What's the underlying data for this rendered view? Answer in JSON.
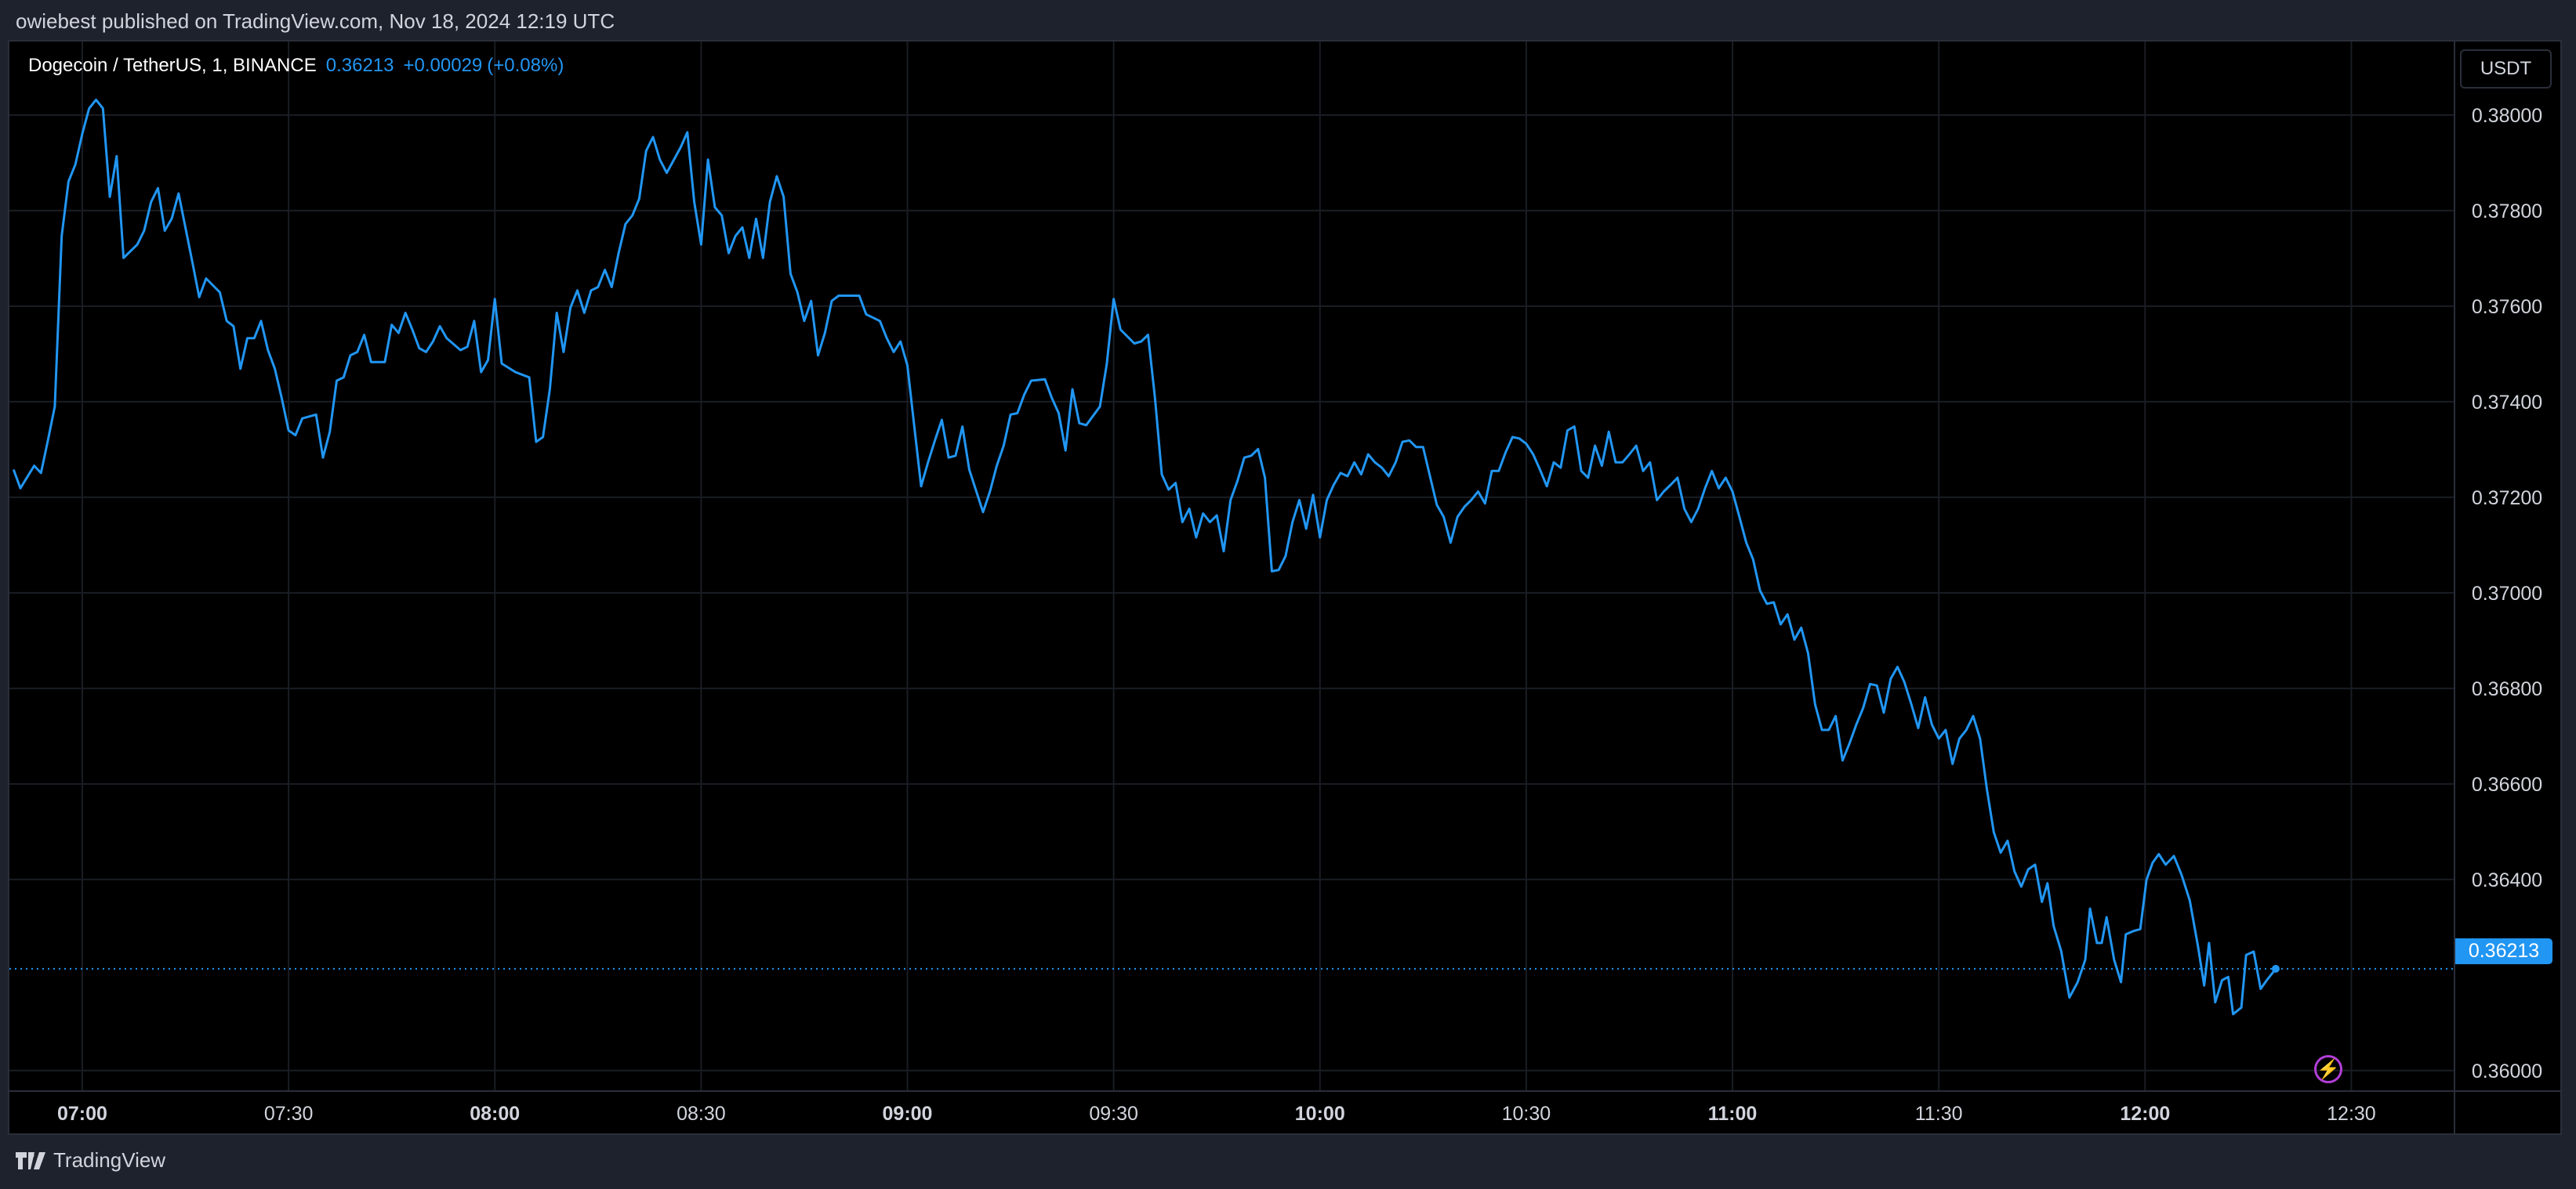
{
  "header": {
    "published": "owiebest published on TradingView.com, Nov 18, 2024 12:19 UTC"
  },
  "legend": {
    "symbol": "Dogecoin / TetherUS, 1, BINANCE",
    "price": "0.36213",
    "change": "+0.00029",
    "change_pct": "(+0.08%)"
  },
  "currency_button": "USDT",
  "last_price_label": "0.36213",
  "footer": {
    "brand": "TradingView"
  },
  "colors": {
    "line": "#2196f3",
    "grid": "#1a1d24",
    "axis_text": "#d1d4dc",
    "bolt": "#b23fd8"
  },
  "chart_data": {
    "type": "line",
    "title": "Dogecoin / TetherUS, 1, BINANCE",
    "x_unit": "minutes from 07:00 UTC",
    "xlim": [
      -10.6,
      345
    ],
    "ylim": [
      0.35957,
      0.38154
    ],
    "grid": true,
    "last_price": 0.36213,
    "x_ticks": [
      {
        "m": 0,
        "label": "07:00",
        "bold": true
      },
      {
        "m": 30,
        "label": "07:30"
      },
      {
        "m": 60,
        "label": "08:00",
        "bold": true
      },
      {
        "m": 90,
        "label": "08:30"
      },
      {
        "m": 120,
        "label": "09:00",
        "bold": true
      },
      {
        "m": 150,
        "label": "09:30"
      },
      {
        "m": 180,
        "label": "10:00",
        "bold": true
      },
      {
        "m": 210,
        "label": "10:30"
      },
      {
        "m": 240,
        "label": "11:00",
        "bold": true
      },
      {
        "m": 270,
        "label": "11:30"
      },
      {
        "m": 300,
        "label": "12:00",
        "bold": true
      },
      {
        "m": 330,
        "label": "12:30"
      }
    ],
    "y_ticks": [
      {
        "v": 0.38,
        "label": "0.38000"
      },
      {
        "v": 0.378,
        "label": "0.37800"
      },
      {
        "v": 0.376,
        "label": "0.37600"
      },
      {
        "v": 0.374,
        "label": "0.37400"
      },
      {
        "v": 0.372,
        "label": "0.37200"
      },
      {
        "v": 0.37,
        "label": "0.37000"
      },
      {
        "v": 0.368,
        "label": "0.36800"
      },
      {
        "v": 0.366,
        "label": "0.36600"
      },
      {
        "v": 0.364,
        "label": "0.36400"
      },
      {
        "v": 0.36,
        "label": "0.36000"
      }
    ],
    "points": [
      [
        -10,
        0.37258
      ],
      [
        -9,
        0.37219
      ],
      [
        -7,
        0.37266
      ],
      [
        -6,
        0.37251
      ],
      [
        -5,
        0.37319
      ],
      [
        -4,
        0.3739
      ],
      [
        -3,
        0.37747
      ],
      [
        -2,
        0.37861
      ],
      [
        -1,
        0.37897
      ],
      [
        0,
        0.37961
      ],
      [
        1,
        0.38014
      ],
      [
        2,
        0.38032
      ],
      [
        3,
        0.38014
      ],
      [
        4,
        0.37829
      ],
      [
        5,
        0.37914
      ],
      [
        6,
        0.37701
      ],
      [
        8,
        0.37729
      ],
      [
        9,
        0.37758
      ],
      [
        10,
        0.37818
      ],
      [
        11,
        0.37847
      ],
      [
        12,
        0.37758
      ],
      [
        13,
        0.37783
      ],
      [
        14,
        0.37836
      ],
      [
        15,
        0.37765
      ],
      [
        16,
        0.37693
      ],
      [
        17,
        0.37619
      ],
      [
        18,
        0.37658
      ],
      [
        20,
        0.37629
      ],
      [
        21,
        0.37569
      ],
      [
        22,
        0.37558
      ],
      [
        23,
        0.37469
      ],
      [
        24,
        0.37533
      ],
      [
        25,
        0.37533
      ],
      [
        26,
        0.37569
      ],
      [
        27,
        0.37508
      ],
      [
        28,
        0.37469
      ],
      [
        29,
        0.37408
      ],
      [
        30,
        0.3734
      ],
      [
        31,
        0.3733
      ],
      [
        32,
        0.37365
      ],
      [
        34,
        0.37373
      ],
      [
        35,
        0.37283
      ],
      [
        36,
        0.37337
      ],
      [
        37,
        0.37444
      ],
      [
        38,
        0.37451
      ],
      [
        39,
        0.37497
      ],
      [
        40,
        0.37504
      ],
      [
        41,
        0.3754
      ],
      [
        42,
        0.37483
      ],
      [
        44,
        0.37483
      ],
      [
        45,
        0.37561
      ],
      [
        46,
        0.37544
      ],
      [
        47,
        0.37586
      ],
      [
        48,
        0.37551
      ],
      [
        49,
        0.37512
      ],
      [
        50,
        0.37504
      ],
      [
        51,
        0.37526
      ],
      [
        52,
        0.37558
      ],
      [
        53,
        0.37533
      ],
      [
        55,
        0.37508
      ],
      [
        56,
        0.37515
      ],
      [
        57,
        0.37569
      ],
      [
        58,
        0.37462
      ],
      [
        59,
        0.37487
      ],
      [
        60,
        0.37615
      ],
      [
        61,
        0.3748
      ],
      [
        63,
        0.37462
      ],
      [
        65,
        0.37451
      ],
      [
        66,
        0.37316
      ],
      [
        67,
        0.37326
      ],
      [
        68,
        0.37426
      ],
      [
        69,
        0.37586
      ],
      [
        70,
        0.37504
      ],
      [
        71,
        0.37597
      ],
      [
        72,
        0.37633
      ],
      [
        73,
        0.37586
      ],
      [
        74,
        0.37633
      ],
      [
        75,
        0.3764
      ],
      [
        76,
        0.37676
      ],
      [
        77,
        0.3764
      ],
      [
        78,
        0.37711
      ],
      [
        79,
        0.37772
      ],
      [
        80,
        0.3779
      ],
      [
        81,
        0.37825
      ],
      [
        82,
        0.37925
      ],
      [
        83,
        0.37954
      ],
      [
        84,
        0.37907
      ],
      [
        85,
        0.37879
      ],
      [
        87,
        0.37932
      ],
      [
        88,
        0.37964
      ],
      [
        89,
        0.37818
      ],
      [
        90,
        0.37729
      ],
      [
        91,
        0.37907
      ],
      [
        92,
        0.37807
      ],
      [
        93,
        0.3779
      ],
      [
        94,
        0.37711
      ],
      [
        95,
        0.37747
      ],
      [
        96,
        0.37765
      ],
      [
        97,
        0.37701
      ],
      [
        98,
        0.37783
      ],
      [
        99,
        0.37701
      ],
      [
        100,
        0.37818
      ],
      [
        101,
        0.37872
      ],
      [
        102,
        0.37829
      ],
      [
        103,
        0.37668
      ],
      [
        104,
        0.37629
      ],
      [
        105,
        0.37569
      ],
      [
        106,
        0.37611
      ],
      [
        107,
        0.37497
      ],
      [
        108,
        0.37544
      ],
      [
        109,
        0.37611
      ],
      [
        110,
        0.37622
      ],
      [
        113,
        0.37622
      ],
      [
        114,
        0.37583
      ],
      [
        116,
        0.37569
      ],
      [
        117,
        0.37533
      ],
      [
        118,
        0.37504
      ],
      [
        119,
        0.37526
      ],
      [
        120,
        0.37476
      ],
      [
        121,
        0.37348
      ],
      [
        122,
        0.37223
      ],
      [
        123,
        0.37273
      ],
      [
        124,
        0.37319
      ],
      [
        125,
        0.37362
      ],
      [
        126,
        0.37283
      ],
      [
        127,
        0.37287
      ],
      [
        128,
        0.37348
      ],
      [
        129,
        0.37258
      ],
      [
        131,
        0.37169
      ],
      [
        132,
        0.37212
      ],
      [
        133,
        0.37266
      ],
      [
        134,
        0.37308
      ],
      [
        135,
        0.37373
      ],
      [
        136,
        0.37376
      ],
      [
        137,
        0.37415
      ],
      [
        138,
        0.37444
      ],
      [
        140,
        0.37447
      ],
      [
        141,
        0.37408
      ],
      [
        142,
        0.37376
      ],
      [
        143,
        0.37298
      ],
      [
        144,
        0.37426
      ],
      [
        145,
        0.37355
      ],
      [
        146,
        0.37351
      ],
      [
        148,
        0.3739
      ],
      [
        149,
        0.3748
      ],
      [
        150,
        0.37615
      ],
      [
        151,
        0.37551
      ],
      [
        153,
        0.37522
      ],
      [
        154,
        0.37526
      ],
      [
        155,
        0.3754
      ],
      [
        156,
        0.37408
      ],
      [
        157,
        0.37248
      ],
      [
        158,
        0.37216
      ],
      [
        159,
        0.3723
      ],
      [
        160,
        0.37148
      ],
      [
        161,
        0.37176
      ],
      [
        162,
        0.37116
      ],
      [
        163,
        0.37166
      ],
      [
        164,
        0.37148
      ],
      [
        165,
        0.37162
      ],
      [
        166,
        0.37087
      ],
      [
        167,
        0.37194
      ],
      [
        168,
        0.37234
      ],
      [
        169,
        0.37283
      ],
      [
        170,
        0.37287
      ],
      [
        171,
        0.37301
      ],
      [
        172,
        0.37241
      ],
      [
        173,
        0.37045
      ],
      [
        174,
        0.37048
      ],
      [
        175,
        0.37077
      ],
      [
        176,
        0.37148
      ],
      [
        177,
        0.37194
      ],
      [
        178,
        0.37134
      ],
      [
        179,
        0.37205
      ],
      [
        180,
        0.37116
      ],
      [
        181,
        0.37194
      ],
      [
        182,
        0.37226
      ],
      [
        183,
        0.37251
      ],
      [
        184,
        0.37244
      ],
      [
        185,
        0.37273
      ],
      [
        186,
        0.37248
      ],
      [
        187,
        0.3729
      ],
      [
        188,
        0.37273
      ],
      [
        189,
        0.37262
      ],
      [
        190,
        0.37244
      ],
      [
        191,
        0.37273
      ],
      [
        192,
        0.37316
      ],
      [
        193,
        0.37319
      ],
      [
        194,
        0.37305
      ],
      [
        195,
        0.37305
      ],
      [
        196,
        0.37244
      ],
      [
        197,
        0.37184
      ],
      [
        198,
        0.37159
      ],
      [
        199,
        0.37105
      ],
      [
        200,
        0.37159
      ],
      [
        201,
        0.3718
      ],
      [
        202,
        0.37194
      ],
      [
        203,
        0.37212
      ],
      [
        204,
        0.37187
      ],
      [
        205,
        0.37255
      ],
      [
        206,
        0.37255
      ],
      [
        207,
        0.37294
      ],
      [
        208,
        0.37326
      ],
      [
        209,
        0.37323
      ],
      [
        210,
        0.37312
      ],
      [
        211,
        0.3729
      ],
      [
        212,
        0.37258
      ],
      [
        213,
        0.37223
      ],
      [
        214,
        0.37273
      ],
      [
        215,
        0.37262
      ],
      [
        216,
        0.3734
      ],
      [
        217,
        0.37348
      ],
      [
        218,
        0.37255
      ],
      [
        219,
        0.37241
      ],
      [
        220,
        0.37308
      ],
      [
        221,
        0.37266
      ],
      [
        222,
        0.37337
      ],
      [
        223,
        0.37273
      ],
      [
        224,
        0.37273
      ],
      [
        225,
        0.3729
      ],
      [
        226,
        0.37308
      ],
      [
        227,
        0.37255
      ],
      [
        228,
        0.37273
      ],
      [
        229,
        0.37194
      ],
      [
        230,
        0.37212
      ],
      [
        231,
        0.37226
      ],
      [
        232,
        0.37241
      ],
      [
        233,
        0.37176
      ],
      [
        234,
        0.37148
      ],
      [
        235,
        0.37176
      ],
      [
        236,
        0.37219
      ],
      [
        237,
        0.37255
      ],
      [
        238,
        0.37219
      ],
      [
        239,
        0.37241
      ],
      [
        240,
        0.37212
      ],
      [
        241,
        0.37159
      ],
      [
        242,
        0.37105
      ],
      [
        243,
        0.3707
      ],
      [
        244,
        0.37005
      ],
      [
        245,
        0.36977
      ],
      [
        246,
        0.3698
      ],
      [
        247,
        0.36934
      ],
      [
        248,
        0.36955
      ],
      [
        249,
        0.36902
      ],
      [
        250,
        0.36927
      ],
      [
        251,
        0.36873
      ],
      [
        252,
        0.36767
      ],
      [
        253,
        0.36713
      ],
      [
        254,
        0.36713
      ],
      [
        255,
        0.36742
      ],
      [
        256,
        0.36649
      ],
      [
        257,
        0.36684
      ],
      [
        258,
        0.36724
      ],
      [
        259,
        0.36759
      ],
      [
        260,
        0.36809
      ],
      [
        261,
        0.36806
      ],
      [
        262,
        0.36749
      ],
      [
        263,
        0.3682
      ],
      [
        264,
        0.36845
      ],
      [
        265,
        0.36813
      ],
      [
        266,
        0.36767
      ],
      [
        267,
        0.36717
      ],
      [
        268,
        0.36781
      ],
      [
        269,
        0.36724
      ],
      [
        270,
        0.36695
      ],
      [
        271,
        0.36713
      ],
      [
        272,
        0.36642
      ],
      [
        273,
        0.36695
      ],
      [
        274,
        0.36713
      ],
      [
        275,
        0.36742
      ],
      [
        276,
        0.36695
      ],
      [
        277,
        0.36588
      ],
      [
        278,
        0.36499
      ],
      [
        279,
        0.36456
      ],
      [
        280,
        0.36481
      ],
      [
        281,
        0.36417
      ],
      [
        282,
        0.36385
      ],
      [
        283,
        0.36421
      ],
      [
        284,
        0.36431
      ],
      [
        285,
        0.36353
      ],
      [
        285.8,
        0.36392
      ],
      [
        286.7,
        0.36303
      ],
      [
        287.8,
        0.3625
      ],
      [
        289,
        0.36153
      ],
      [
        290.2,
        0.36185
      ],
      [
        291.3,
        0.36232
      ],
      [
        292,
        0.36339
      ],
      [
        293,
        0.36267
      ],
      [
        293.7,
        0.36267
      ],
      [
        294.4,
        0.36321
      ],
      [
        295.5,
        0.36232
      ],
      [
        296.5,
        0.36185
      ],
      [
        297.2,
        0.36285
      ],
      [
        298.3,
        0.36292
      ],
      [
        299.3,
        0.36296
      ],
      [
        300.2,
        0.36399
      ],
      [
        301.1,
        0.36435
      ],
      [
        302,
        0.36453
      ],
      [
        303,
        0.36431
      ],
      [
        304.2,
        0.36449
      ],
      [
        305.3,
        0.3641
      ],
      [
        306.5,
        0.36356
      ],
      [
        307.7,
        0.3626
      ],
      [
        308.6,
        0.36178
      ],
      [
        309.3,
        0.36267
      ],
      [
        310.2,
        0.36143
      ],
      [
        311.2,
        0.36189
      ],
      [
        312.1,
        0.36196
      ],
      [
        312.8,
        0.36118
      ],
      [
        314,
        0.36132
      ],
      [
        314.7,
        0.36242
      ],
      [
        315.8,
        0.36249
      ],
      [
        316.8,
        0.36171
      ],
      [
        317.7,
        0.36189
      ],
      [
        319,
        0.36213
      ]
    ]
  }
}
